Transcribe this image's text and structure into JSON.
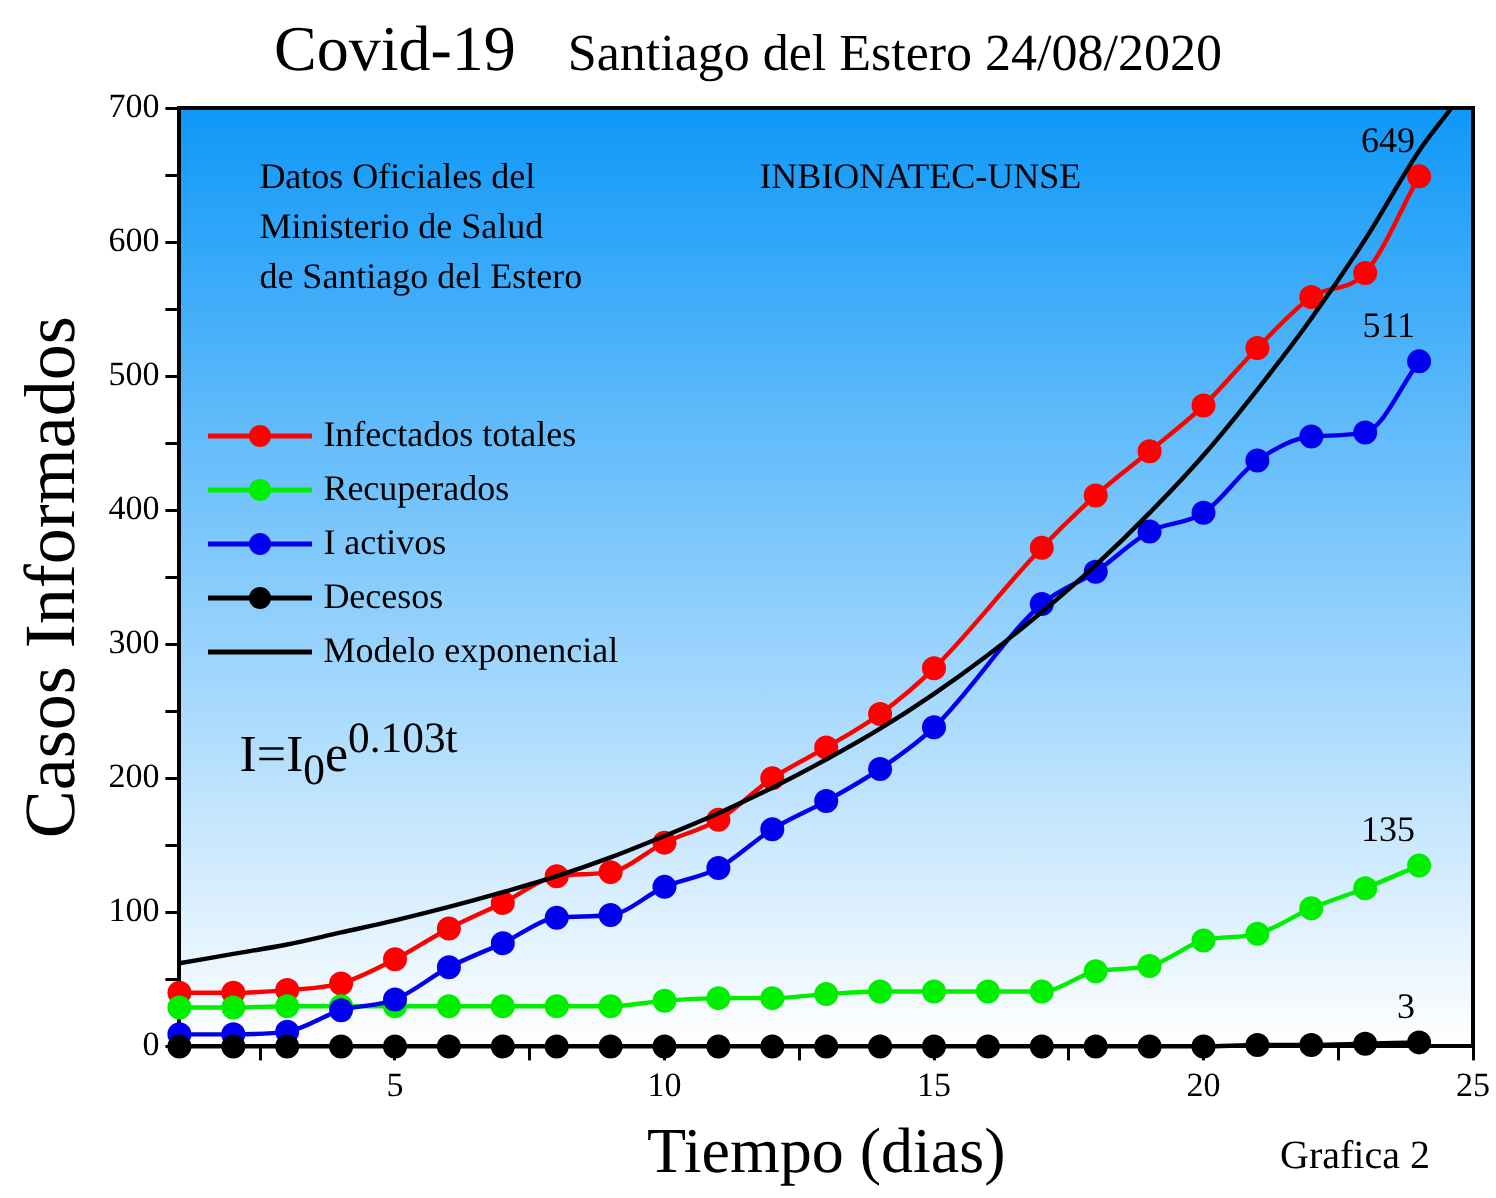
{
  "chart_data": {
    "type": "line",
    "title": "Covid-19",
    "subtitle": "Santiago del Estero 24/08/2020",
    "xlabel": "Tiempo (dias)",
    "ylabel": "Casos Informados",
    "annotations": [
      "Datos Oficiales del\nMinisterio de Salud\nde Santiago del Estero",
      "INBIONATEC-UNSE",
      "I=I$_{0}$e$^{0.103t}$",
      "Grafica 2"
    ],
    "xlim": [
      1,
      25
    ],
    "xticks": [
      {
        "value": 2.5,
        "label": null
      },
      5,
      {
        "value": 7.5,
        "label": null
      },
      10,
      {
        "value": 12.5,
        "label": null
      },
      15,
      {
        "value": 17.5,
        "label": null
      },
      20,
      {
        "value": 22.5,
        "label": null
      },
      25
    ],
    "ylim": [
      0,
      700
    ],
    "yticks": [
      0,
      {
        "value": 50,
        "label": null
      },
      100,
      {
        "value": 150,
        "label": null
      },
      200,
      {
        "value": 250,
        "label": null
      },
      300,
      {
        "value": 350,
        "label": null
      },
      400,
      {
        "value": 450,
        "label": null
      },
      500,
      {
        "value": 550,
        "label": null
      },
      600,
      {
        "value": 650,
        "label": null
      },
      700
    ],
    "grid": false,
    "legend": "top left",
    "marker": "circle",
    "series": [
      {
        "name": "Infectados totales",
        "color": "#ff0000",
        "x": [
          1,
          2,
          3,
          4,
          5,
          6,
          7,
          8,
          9,
          10,
          11,
          12,
          13,
          14,
          15,
          17,
          18,
          19,
          20,
          21,
          22,
          23,
          24
        ],
        "values": [
          40,
          40,
          42,
          47,
          65,
          88,
          107,
          127,
          130,
          152,
          169,
          200,
          223,
          248,
          282,
          372,
          411,
          444,
          478,
          521,
          559,
          577,
          649
        ],
        "value_labels": [
          null,
          null,
          null,
          null,
          null,
          null,
          null,
          null,
          null,
          null,
          null,
          null,
          null,
          null,
          null,
          null,
          null,
          null,
          null,
          null,
          null,
          null,
          "649"
        ]
      },
      {
        "name": "Recuperados",
        "color": "#00ee00",
        "x": [
          1,
          2,
          3,
          4,
          5,
          6,
          7,
          8,
          9,
          10,
          11,
          12,
          13,
          14,
          15,
          16,
          17,
          18,
          19,
          20,
          21,
          22,
          23,
          24
        ],
        "values": [
          29,
          29,
          30,
          30,
          30,
          30,
          30,
          30,
          30,
          34,
          36,
          36,
          39,
          41,
          41,
          41,
          41,
          56,
          60,
          79,
          84,
          103,
          118,
          135
        ],
        "value_labels": [
          null,
          null,
          null,
          null,
          null,
          null,
          null,
          null,
          null,
          null,
          null,
          null,
          null,
          null,
          null,
          null,
          null,
          null,
          null,
          null,
          null,
          null,
          null,
          "135"
        ]
      },
      {
        "name": "I activos",
        "color": "#0000ee",
        "x": [
          1,
          2,
          3,
          4,
          5,
          6,
          7,
          8,
          9,
          10,
          11,
          12,
          13,
          14,
          15,
          17,
          18,
          19,
          20,
          21,
          22,
          23,
          24
        ],
        "values": [
          9,
          9,
          11,
          27,
          35,
          59,
          77,
          96,
          98,
          119,
          133,
          162,
          183,
          207,
          238,
          330,
          354,
          384,
          398,
          437,
          455,
          458,
          511
        ],
        "value_labels": [
          null,
          null,
          null,
          null,
          null,
          null,
          null,
          null,
          null,
          null,
          null,
          null,
          null,
          null,
          null,
          null,
          null,
          null,
          null,
          null,
          null,
          null,
          "511"
        ]
      },
      {
        "name": "Decesos",
        "color": "#000000",
        "x": [
          1,
          2,
          3,
          4,
          5,
          6,
          7,
          8,
          9,
          10,
          11,
          12,
          13,
          14,
          15,
          16,
          17,
          18,
          19,
          20,
          21,
          22,
          23,
          24
        ],
        "values": [
          0,
          0,
          0,
          0,
          0,
          0,
          0,
          0,
          0,
          0,
          0,
          0,
          0,
          0,
          0,
          0,
          0,
          0,
          0,
          0,
          1,
          1,
          2,
          3
        ],
        "value_labels": [
          null,
          null,
          null,
          null,
          null,
          null,
          null,
          null,
          null,
          null,
          null,
          null,
          null,
          null,
          null,
          null,
          null,
          null,
          null,
          null,
          null,
          null,
          null,
          "3"
        ]
      },
      {
        "name": "Modelo exponencial",
        "color": "#000000",
        "marker": "none",
        "x": [
          1,
          2,
          3,
          4,
          5,
          6,
          7,
          8,
          9,
          10,
          11,
          12,
          13,
          14,
          15,
          16,
          17,
          18,
          19,
          20,
          21,
          22,
          23,
          24,
          24.6
        ],
        "values": [
          62,
          69,
          76,
          85,
          94,
          104,
          115,
          127,
          141,
          157,
          174,
          193,
          214,
          237,
          263,
          292,
          324,
          359,
          398,
          441,
          490,
          543,
          602,
          668,
          700
        ]
      }
    ]
  }
}
